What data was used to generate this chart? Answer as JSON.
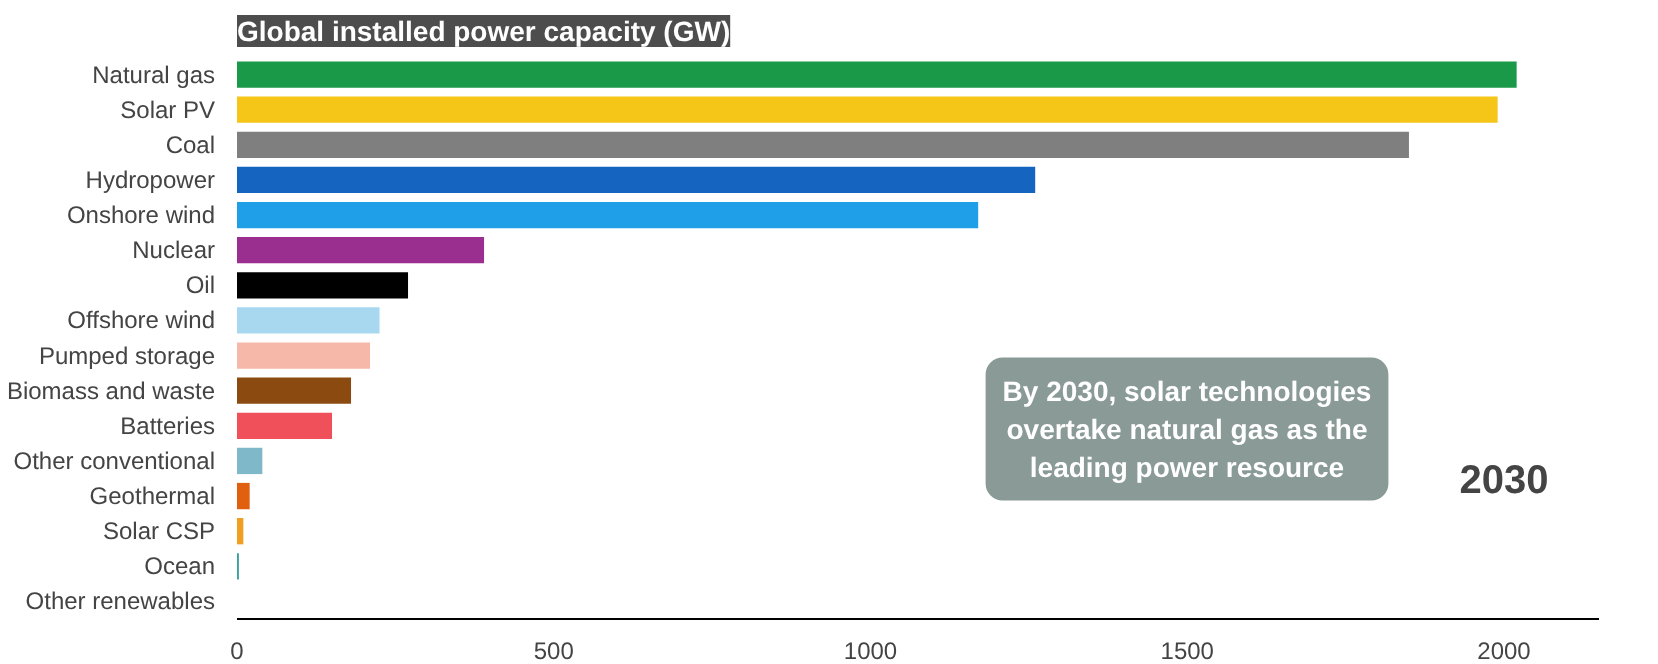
{
  "chart_data": {
    "type": "bar",
    "orientation": "horizontal",
    "title": "Global installed power capacity (GW)",
    "categories": [
      "Natural gas",
      "Solar PV",
      "Coal",
      "Hydropower",
      "Onshore wind",
      "Nuclear",
      "Oil",
      "Offshore wind",
      "Pumped storage",
      "Biomass and waste",
      "Batteries",
      "Other conventional",
      "Geothermal",
      "Solar CSP",
      "Ocean",
      "Other renewables"
    ],
    "values": [
      2020,
      1990,
      1850,
      1260,
      1170,
      390,
      270,
      225,
      210,
      180,
      150,
      40,
      20,
      10,
      3,
      null
    ],
    "colors": [
      "#1a9a48",
      "#f5c518",
      "#7f7f7f",
      "#1565c0",
      "#1e9fe8",
      "#9b2f8f",
      "#000000",
      "#a8d8f0",
      "#f6b8a8",
      "#8b4a10",
      "#f0505a",
      "#7fb8c8",
      "#e06010",
      "#f0a020",
      "#3aa0a0",
      "#c0c0c0"
    ],
    "xlim": [
      0,
      2150
    ],
    "xticks": [
      0,
      500,
      1000,
      1500,
      2000
    ],
    "grid": false,
    "annotations": [
      "By 2030, solar technologies overtake natural gas as the leading power resource",
      "2030"
    ]
  }
}
